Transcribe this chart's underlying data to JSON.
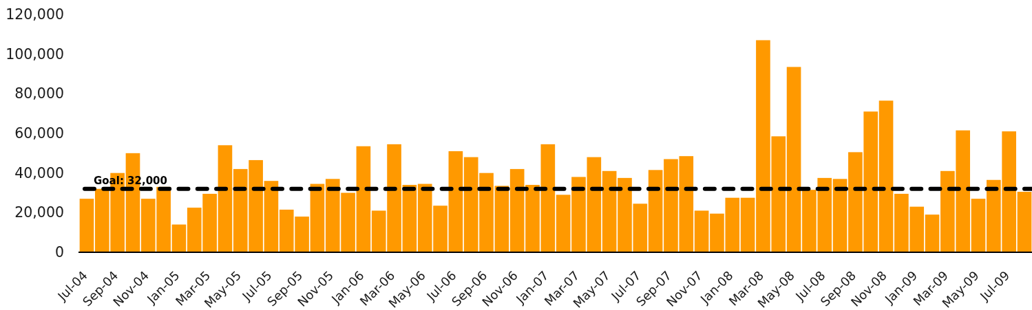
{
  "chart_data": {
    "type": "bar",
    "categories": [
      "Jul-04",
      null,
      "Sep-04",
      null,
      "Nov-04",
      null,
      "Jan-05",
      null,
      "Mar-05",
      null,
      "May-05",
      null,
      "Jul-05",
      null,
      "Sep-05",
      null,
      "Nov-05",
      null,
      "Jan-06",
      null,
      "Mar-06",
      null,
      "May-06",
      null,
      "Jul-06",
      null,
      "Sep-06",
      null,
      "Nov-06",
      null,
      "Jan-07",
      null,
      "Mar-07",
      null,
      "May-07",
      null,
      "Jul-07",
      null,
      "Sep-07",
      null,
      "Nov-07",
      null,
      "Jan-08",
      null,
      "Mar-08",
      null,
      "May-08",
      null,
      "Jul-08",
      null,
      "Sep-08",
      null,
      "Nov-08",
      null,
      "Jan-09",
      null,
      "Mar-09",
      null,
      "May-09",
      null,
      "Jul-09",
      null
    ],
    "values": [
      27000,
      32000,
      40000,
      50000,
      27000,
      33000,
      14000,
      22500,
      29500,
      54000,
      42000,
      46500,
      36000,
      21500,
      18000,
      34500,
      37000,
      30000,
      53500,
      21000,
      54500,
      34000,
      34500,
      23500,
      51000,
      48000,
      40000,
      33500,
      42000,
      34000,
      54500,
      29000,
      38000,
      48000,
      41000,
      37500,
      24500,
      41500,
      47000,
      48500,
      21000,
      19500,
      27500,
      27500,
      107000,
      58500,
      93500,
      31500,
      37500,
      37000,
      50500,
      71000,
      76500,
      29500,
      23000,
      19000,
      41000,
      61500,
      27000,
      36500,
      61000,
      30500
    ],
    "color": "#ff9900",
    "ylim": [
      0,
      120000
    ],
    "yticks": [
      0,
      {
        "value": 20000,
        "label": "20,000"
      },
      {
        "value": 40000,
        "label": "40,000"
      },
      {
        "value": 60000,
        "label": "60,000"
      },
      {
        "value": 80000,
        "label": "80,000"
      },
      {
        "value": 100000,
        "label": "100,000"
      },
      {
        "value": 120000,
        "label": "120,000"
      }
    ],
    "ref_lines": [
      {
        "axis": "y",
        "value": 32000,
        "label": "Goal: 32,000",
        "color": "#000000",
        "line_style": "dashed"
      }
    ]
  }
}
